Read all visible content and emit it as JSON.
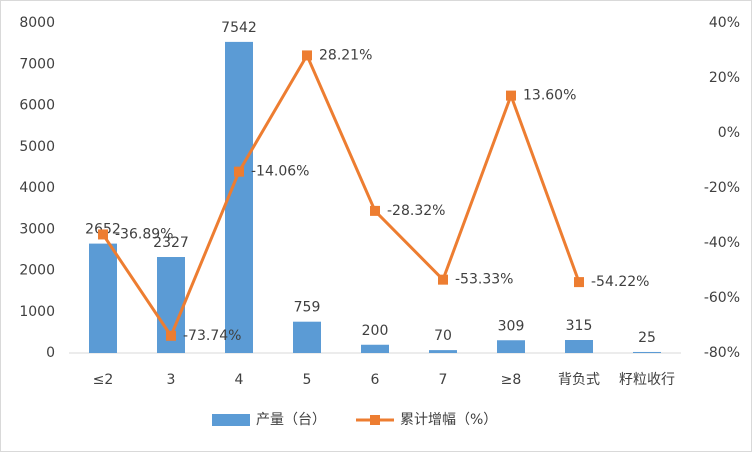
{
  "chart_data": {
    "type": "bar",
    "categories": [
      "≤2",
      "3",
      "4",
      "5",
      "6",
      "7",
      "≥8",
      "背负式",
      "籽粒收行"
    ],
    "ylim": [
      0,
      8000
    ],
    "yticks": [
      0,
      1000,
      2000,
      3000,
      4000,
      5000,
      6000,
      7000,
      8000
    ],
    "y2lim": [
      -80,
      40
    ],
    "y2ticks": [
      {
        "value": -80,
        "label": "-80%"
      },
      {
        "value": -60,
        "label": "-60%"
      },
      {
        "value": -40,
        "label": "-40%"
      },
      {
        "value": -20,
        "label": "-20%"
      },
      {
        "value": 0,
        "label": "0%"
      },
      {
        "value": 20,
        "label": "20%"
      },
      {
        "value": 40,
        "label": "40%"
      }
    ],
    "legend": "bottom",
    "series": [
      {
        "name": "产量（台）",
        "type": "bar",
        "color": "#5b9bd5",
        "values": [
          2652,
          2327,
          7542,
          759,
          200,
          70,
          309,
          315,
          25
        ]
      },
      {
        "name": "累计增幅（%）",
        "type": "line",
        "axis": "y2",
        "color": "#ed7d31",
        "values": [
          -36.89,
          -73.74,
          -14.06,
          28.21,
          -28.32,
          -53.33,
          13.6,
          -54.22,
          null
        ],
        "value_labels": [
          "-36.89%",
          "-73.74%",
          "-14.06%",
          "28.21%",
          "-28.32%",
          "-53.33%",
          "13.60%",
          "-54.22%",
          null
        ]
      }
    ]
  }
}
